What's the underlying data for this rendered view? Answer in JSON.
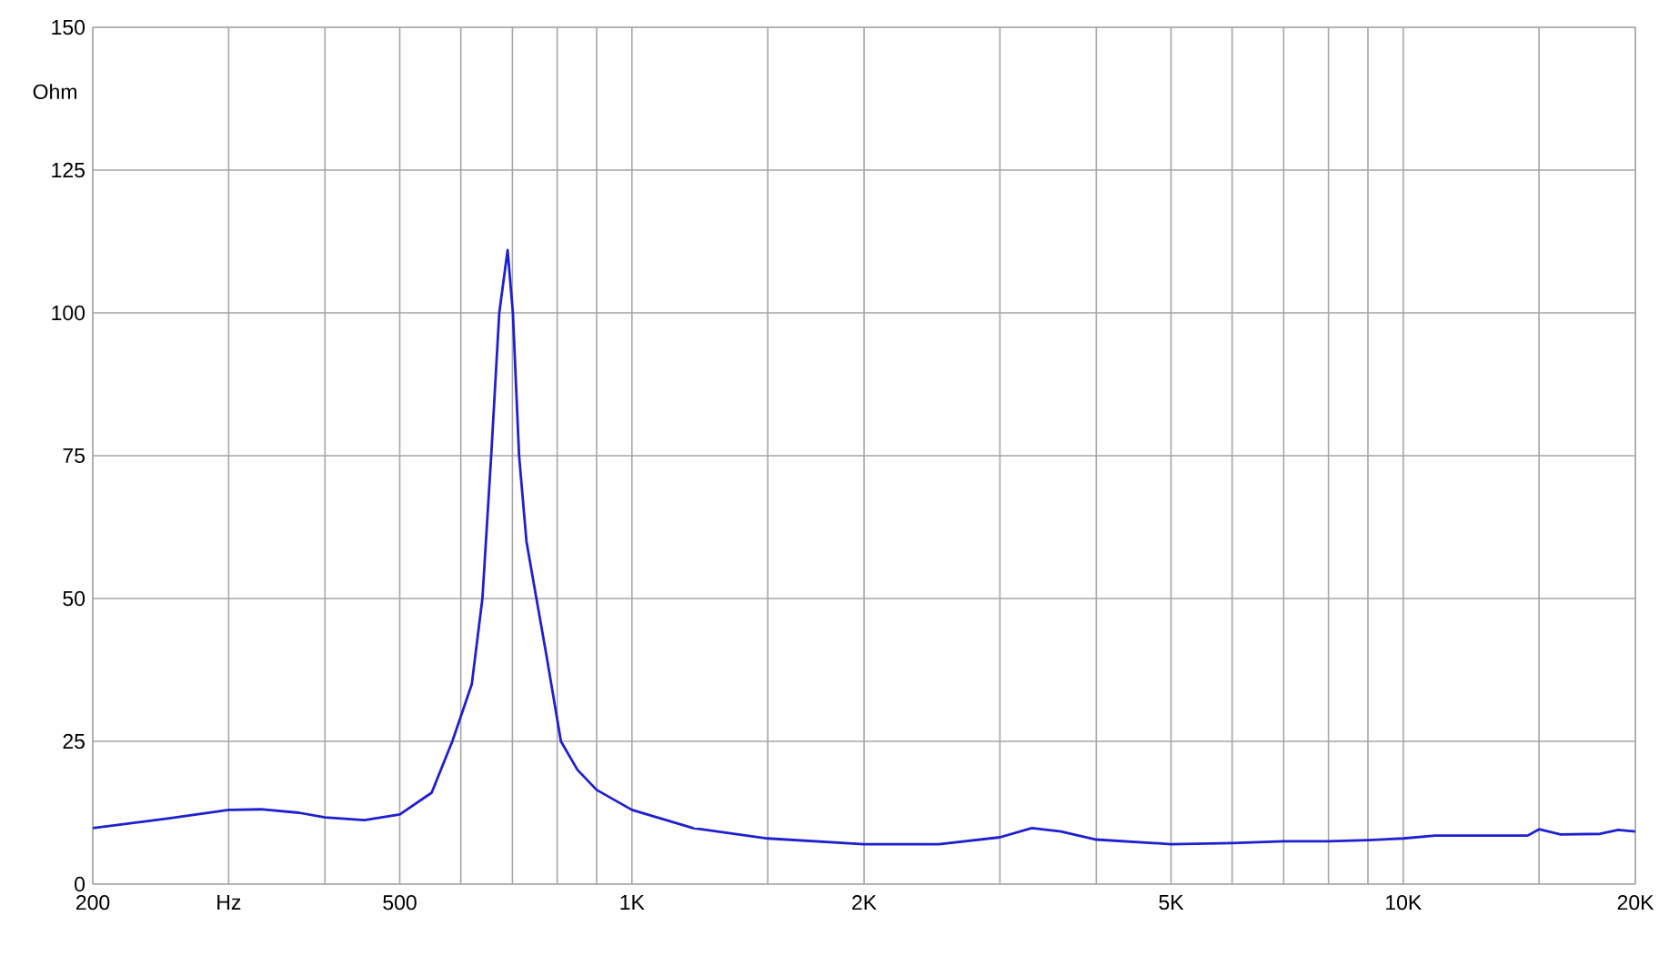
{
  "chart_data": {
    "type": "line",
    "ylabel": "Ohm",
    "log": "x",
    "grid": true,
    "xlim": [
      200,
      20000
    ],
    "ylim": [
      0,
      150
    ],
    "xticks": [
      {
        "value": 200,
        "label": "200"
      },
      {
        "value": 300,
        "label": "Hz"
      },
      {
        "value": 400,
        "label": null
      },
      {
        "value": 500,
        "label": "500"
      },
      {
        "value": 600,
        "label": null
      },
      {
        "value": 700,
        "label": null
      },
      {
        "value": 800,
        "label": null
      },
      {
        "value": 900,
        "label": null
      },
      {
        "value": 1000,
        "label": "1K"
      },
      {
        "value": 1500,
        "label": null
      },
      {
        "value": 2000,
        "label": "2K"
      },
      {
        "value": 3000,
        "label": null
      },
      {
        "value": 4000,
        "label": null
      },
      {
        "value": 5000,
        "label": "5K"
      },
      {
        "value": 6000,
        "label": null
      },
      {
        "value": 7000,
        "label": null
      },
      {
        "value": 8000,
        "label": null
      },
      {
        "value": 9000,
        "label": null
      },
      {
        "value": 10000,
        "label": "10K"
      },
      {
        "value": 15000,
        "label": null
      },
      {
        "value": 20000,
        "label": "20K"
      }
    ],
    "yticks": [
      0,
      25,
      50,
      75,
      100,
      125,
      150
    ],
    "marker": "none",
    "line_style": "solid",
    "series": [
      {
        "color": "#1f1fd0",
        "x": [
          200,
          250,
          300,
          330,
          370,
          400,
          450,
          500,
          550,
          585,
          620,
          640,
          657,
          673,
          690,
          701,
          714,
          730,
          752,
          775,
          809,
          850,
          900,
          1000,
          1200,
          1500,
          2000,
          2500,
          3000,
          3300,
          3600,
          4000,
          5000,
          6000,
          7000,
          8000,
          9000,
          10000,
          11000,
          13000,
          14500,
          15000,
          16000,
          18000,
          19000,
          20000
        ],
        "values": [
          9.8,
          11.5,
          13,
          13.1,
          12.5,
          11.7,
          11.2,
          12.2,
          16,
          25,
          35,
          50,
          75,
          100,
          111,
          100,
          75,
          60,
          50,
          40,
          25,
          20,
          16.5,
          13,
          9.8,
          8,
          7,
          7,
          8.2,
          9.8,
          9.2,
          7.8,
          7,
          7.2,
          7.5,
          7.5,
          7.7,
          8,
          8.5,
          8.5,
          8.5,
          9.6,
          8.7,
          8.8,
          9.5,
          9.2
        ]
      }
    ]
  }
}
